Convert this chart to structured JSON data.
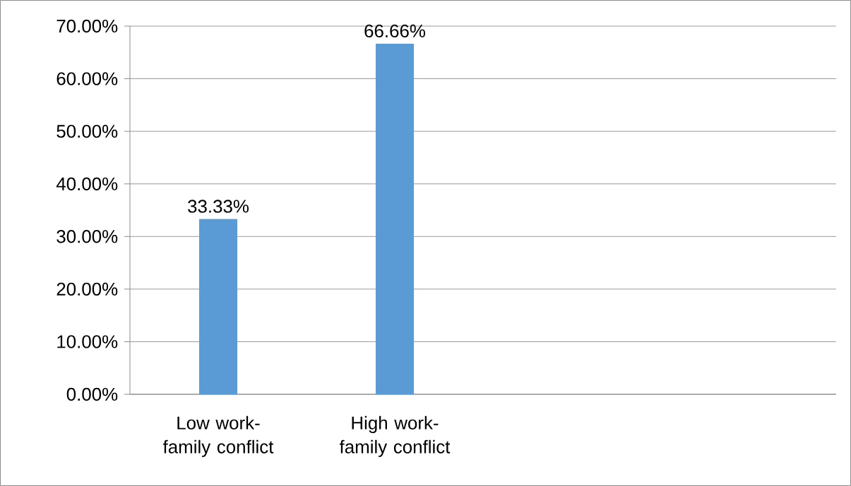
{
  "chart_data": {
    "type": "bar",
    "categories": [
      "Low work-family conflict",
      "High work-family conflict",
      null,
      null
    ],
    "values": [
      33.33,
      66.66,
      null,
      null
    ],
    "value_labels": [
      "33.33%",
      "66.66%",
      null,
      null
    ],
    "color": "#5b9bd5",
    "ylim": [
      0,
      70
    ],
    "yticks": [
      {
        "value": 0,
        "label": "0.00%"
      },
      {
        "value": 10,
        "label": "10.00%"
      },
      {
        "value": 20,
        "label": "20.00%"
      },
      {
        "value": 30,
        "label": "30.00%"
      },
      {
        "value": 40,
        "label": "40.00%"
      },
      {
        "value": 50,
        "label": "50.00%"
      },
      {
        "value": 60,
        "label": "60.00%"
      },
      {
        "value": 70,
        "label": "70.00%"
      }
    ],
    "grid": "y"
  }
}
